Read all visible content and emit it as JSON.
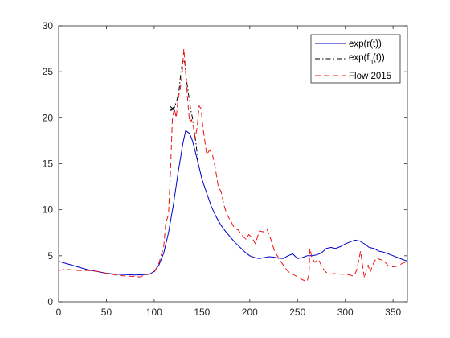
{
  "chart_data": {
    "type": "line",
    "title": "",
    "xlabel": "",
    "ylabel": "",
    "xlim": [
      0,
      365
    ],
    "ylim": [
      0,
      30
    ],
    "xticks": [
      0,
      50,
      100,
      150,
      200,
      250,
      300,
      350
    ],
    "yticks": [
      0,
      5,
      10,
      15,
      20,
      25,
      30
    ],
    "grid": false,
    "legend_position": "top-right",
    "series": [
      {
        "name": "exp(r(t))",
        "color": "#0000cc",
        "style": "solid",
        "x": [
          0,
          10,
          20,
          30,
          40,
          50,
          60,
          70,
          80,
          90,
          95,
          100,
          105,
          110,
          115,
          120,
          125,
          130,
          133,
          137,
          140,
          145,
          150,
          155,
          160,
          165,
          170,
          175,
          180,
          185,
          190,
          195,
          200,
          205,
          210,
          215,
          220,
          225,
          230,
          235,
          240,
          245,
          250,
          255,
          260,
          265,
          270,
          275,
          280,
          285,
          290,
          295,
          300,
          305,
          310,
          315,
          320,
          325,
          330,
          335,
          340,
          345,
          350,
          355,
          360,
          365
        ],
        "y": [
          4.4,
          4.1,
          3.8,
          3.5,
          3.3,
          3.1,
          3.0,
          2.95,
          2.9,
          2.95,
          3.0,
          3.3,
          4.0,
          5.3,
          7.5,
          10.5,
          14.0,
          17.2,
          18.6,
          18.3,
          17.5,
          15.5,
          13.3,
          11.8,
          10.3,
          9.2,
          8.3,
          7.6,
          7.0,
          6.4,
          5.9,
          5.4,
          5.0,
          4.8,
          4.7,
          4.8,
          4.9,
          4.85,
          4.75,
          4.7,
          5.0,
          5.2,
          4.7,
          4.8,
          5.0,
          5.0,
          5.1,
          5.3,
          5.8,
          5.9,
          5.8,
          6.0,
          6.3,
          6.5,
          6.7,
          6.6,
          6.3,
          5.9,
          5.8,
          5.5,
          5.4,
          5.2,
          5.0,
          4.8,
          4.6,
          4.4
        ]
      },
      {
        "name": "exp(f_n(t))",
        "color": "#000000",
        "style": "dashdot",
        "x": [
          118,
          121,
          124,
          126,
          128,
          130,
          132,
          134,
          136,
          138,
          140,
          142,
          144,
          146
        ],
        "y": [
          20.8,
          21.1,
          22.0,
          23.0,
          25.0,
          26.3,
          26.0,
          24.0,
          22.5,
          21.0,
          20.0,
          18.5,
          17.0,
          15.0
        ]
      },
      {
        "name": "Flow 2015",
        "color": "#ee1111",
        "style": "dashed",
        "x": [
          0,
          5,
          10,
          20,
          30,
          40,
          50,
          60,
          70,
          80,
          85,
          90,
          95,
          100,
          105,
          110,
          112,
          115,
          117,
          119,
          121,
          123,
          125,
          127,
          129,
          131,
          133,
          135,
          137,
          139,
          141,
          143,
          145,
          147,
          149,
          151,
          153,
          155,
          158,
          161,
          164,
          167,
          170,
          173,
          176,
          180,
          184,
          188,
          192,
          196,
          199,
          202,
          206,
          210,
          214,
          218,
          222,
          226,
          230,
          235,
          240,
          245,
          250,
          255,
          260,
          262,
          263,
          265,
          268,
          272,
          276,
          280,
          285,
          290,
          295,
          300,
          305,
          308,
          310,
          312,
          314,
          316,
          318,
          320,
          322,
          324,
          326,
          328,
          330,
          333,
          336,
          340,
          345,
          350,
          355,
          360,
          365
        ],
        "y": [
          3.4,
          3.5,
          3.5,
          3.4,
          3.4,
          3.3,
          3.1,
          2.9,
          2.8,
          2.75,
          2.7,
          2.9,
          3.0,
          3.2,
          4.2,
          6.0,
          8.5,
          9.5,
          14.0,
          19.8,
          21.0,
          20.0,
          22.0,
          23.0,
          24.5,
          27.5,
          25.0,
          22.0,
          19.5,
          19.8,
          19.0,
          17.8,
          19.0,
          21.3,
          21.0,
          19.0,
          17.5,
          16.0,
          16.5,
          16.0,
          14.5,
          12.5,
          12.0,
          10.5,
          9.5,
          8.8,
          8.0,
          7.8,
          7.2,
          6.8,
          7.3,
          7.0,
          6.3,
          7.7,
          7.6,
          7.9,
          6.8,
          5.5,
          4.8,
          4.0,
          3.3,
          3.0,
          2.7,
          2.4,
          2.2,
          3.0,
          5.8,
          4.8,
          4.3,
          4.6,
          3.7,
          3.2,
          3.0,
          3.1,
          3.0,
          3.0,
          2.9,
          2.8,
          3.0,
          3.5,
          4.5,
          5.5,
          4.0,
          2.6,
          3.4,
          4.0,
          3.2,
          3.8,
          4.3,
          4.8,
          4.6,
          4.5,
          3.9,
          3.8,
          3.9,
          4.2,
          4.4
        ]
      }
    ],
    "markers": [
      {
        "x": 119,
        "y": 21.0,
        "symbol": "×"
      }
    ]
  }
}
